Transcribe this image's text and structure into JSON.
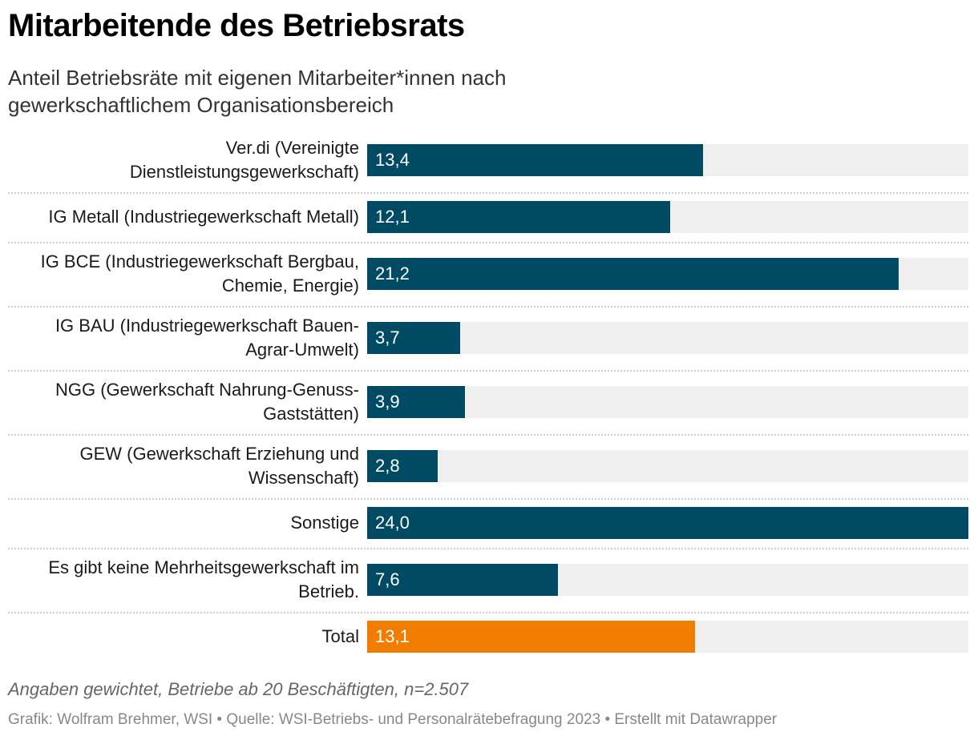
{
  "title": "Mitarbeitende des Betriebsrats",
  "subtitle": "Anteil Betriebsräte mit eigenen Mitarbeiter*innen nach gewerkschaftlichem Organisationsbereich",
  "note": "Angaben gewichtet, Betriebe ab 20 Beschäftigten, n=2.507",
  "source": "Grafik: Wolfram Brehmer, WSI • Quelle: WSI-Betriebs- und Personalrätebefragung 2023 • Erstellt mit Datawrapper",
  "colors": {
    "bar": "#004a63",
    "highlight": "#f07d00",
    "track": "#efefef"
  },
  "chart_data": {
    "type": "bar",
    "orientation": "horizontal",
    "categories": [
      "Ver.di (Vereinigte Dienstleistungsgewerkschaft)",
      "IG Metall (Industriegewerkschaft Metall)",
      "IG BCE (Industriegewerkschaft Bergbau, Chemie, Energie)",
      "IG BAU (Industriegewerkschaft Bauen-Agrar-Umwelt)",
      "NGG (Gewerkschaft Nahrung-Genuss-Gaststätten)",
      "GEW (Gewerkschaft Erziehung und Wissenschaft)",
      "Sonstige",
      "Es gibt keine Mehrheitsgewerkschaft im Betrieb.",
      "Total"
    ],
    "values": [
      13.4,
      12.1,
      21.2,
      3.7,
      3.9,
      2.8,
      24.0,
      7.6,
      13.1
    ],
    "value_labels": [
      "13,4",
      "12,1",
      "21,2",
      "3,7",
      "3,9",
      "2,8",
      "24,0",
      "7,6",
      "13,1"
    ],
    "highlight": [
      "Total"
    ],
    "xlim": [
      0,
      24
    ],
    "grid": false,
    "legend": "none"
  }
}
